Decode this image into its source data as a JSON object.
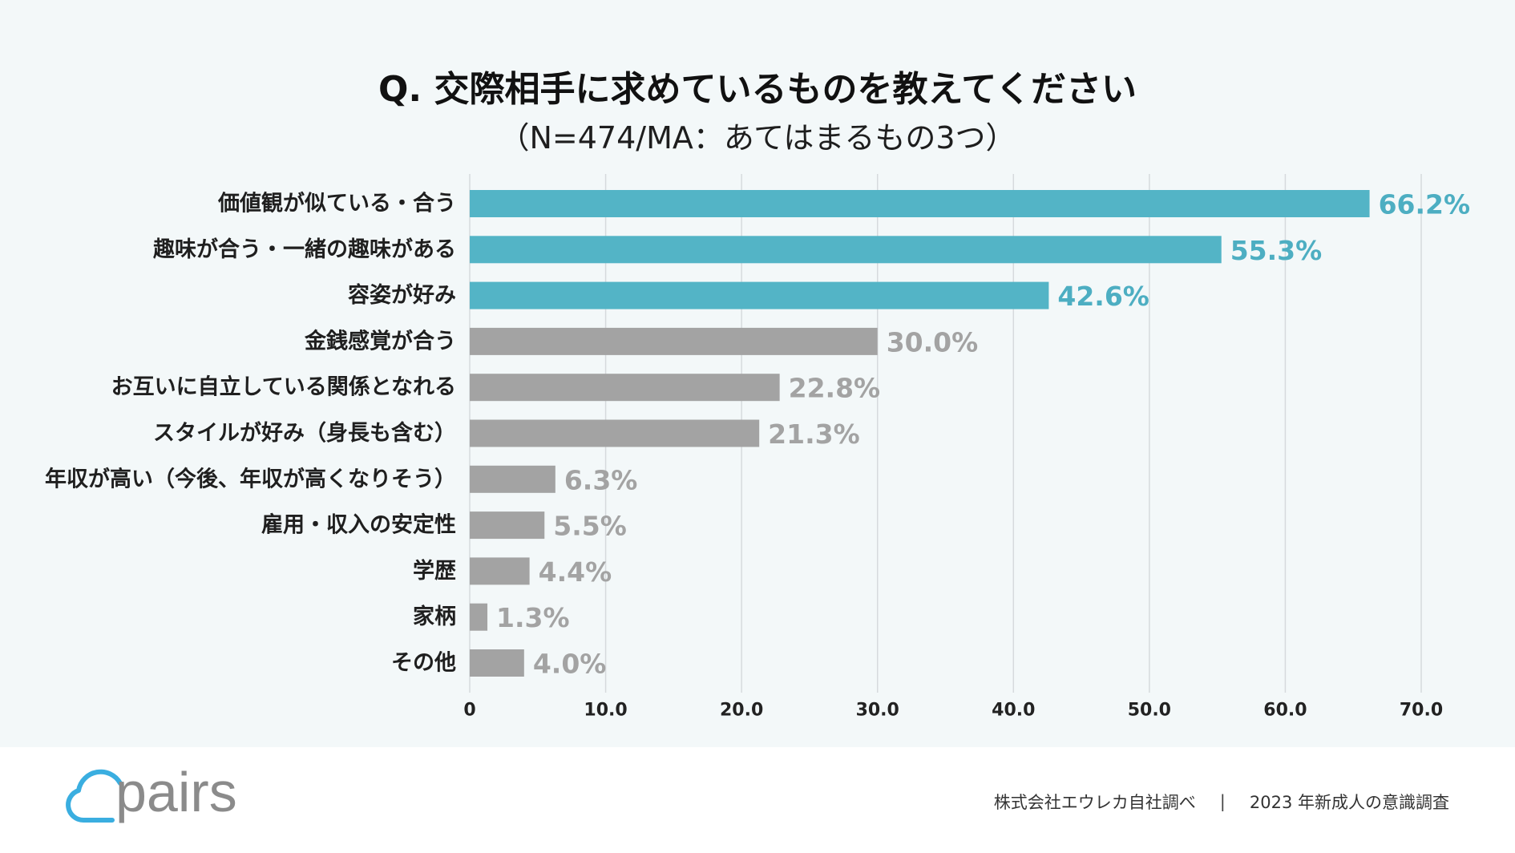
{
  "page": {
    "panel_background": "#f3f8f9",
    "footer_background": "#ffffff"
  },
  "chart_data": {
    "type": "bar",
    "orientation": "horizontal",
    "title": "Q. 交際相手に求めているものを教えてください",
    "subtitle": "（N=474/MA：あてはまるもの3つ）",
    "categories": [
      "価値観が似ている・合う",
      "趣味が合う・一緒の趣味がある",
      "容姿が好み",
      "金銭感覚が合う",
      "お互いに自立している関係となれる",
      "スタイルが好み（身長も含む）",
      "年収が高い（今後、年収が高くなりそう）",
      "雇用・収入の安定性",
      "学歴",
      "家柄",
      "その他"
    ],
    "values": [
      66.2,
      55.3,
      42.6,
      30.0,
      22.8,
      21.3,
      6.3,
      5.5,
      4.4,
      1.3,
      4.0
    ],
    "value_labels": [
      "66.2%",
      "55.3%",
      "42.6%",
      "30.0%",
      "22.8%",
      "21.3%",
      "6.3%",
      "5.5%",
      "4.4%",
      "1.3%",
      "4.0%"
    ],
    "xlabel": "",
    "ylabel": "",
    "xlim": [
      0,
      70
    ],
    "xticks": [
      0,
      10,
      20,
      30,
      40,
      50,
      60,
      70
    ],
    "xtick_labels": [
      "0",
      "10.0",
      "20.0",
      "30.0",
      "40.0",
      "50.0",
      "60.0",
      "70.0"
    ],
    "grid": true,
    "legend": "none",
    "highlight_indices": [
      0,
      1,
      2
    ],
    "colors": {
      "highlight_bar": "#53b4c6",
      "default_bar": "#a3a3a3",
      "highlight_label": "#4daec2",
      "default_label": "#a3a3a3",
      "grid": "#d6dadd"
    }
  },
  "logo": {
    "text": "pairs",
    "icon": "cloud-icon",
    "icon_color": "#3aaee0",
    "text_color": "#8b8b8b"
  },
  "footer": {
    "source": "株式会社エウレカ自社調べ",
    "separator": "|",
    "survey": "2023 年新成人の意識調査"
  }
}
